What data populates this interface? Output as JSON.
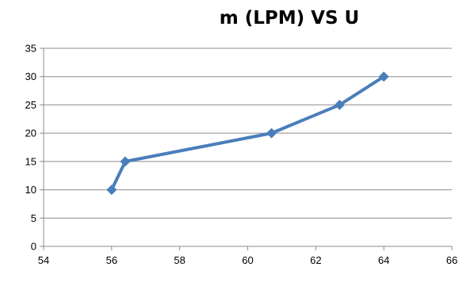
{
  "chart_data": {
    "type": "line",
    "title": "m (LPM) VS U",
    "xlabel": "",
    "ylabel": "",
    "xlim": [
      54,
      66
    ],
    "ylim": [
      0,
      35
    ],
    "x_ticks": [
      54,
      56,
      58,
      60,
      62,
      64,
      66
    ],
    "y_ticks": [
      0,
      5,
      10,
      15,
      20,
      25,
      30,
      35
    ],
    "grid": "horizontal",
    "legend": "none",
    "series": [
      {
        "color": "#4a7ebb",
        "marker": "diamond",
        "points": [
          {
            "x": 56.0,
            "y": 10
          },
          {
            "x": 56.4,
            "y": 15
          },
          {
            "x": 60.7,
            "y": 20
          },
          {
            "x": 62.7,
            "y": 25
          },
          {
            "x": 64.0,
            "y": 30
          }
        ]
      }
    ]
  }
}
